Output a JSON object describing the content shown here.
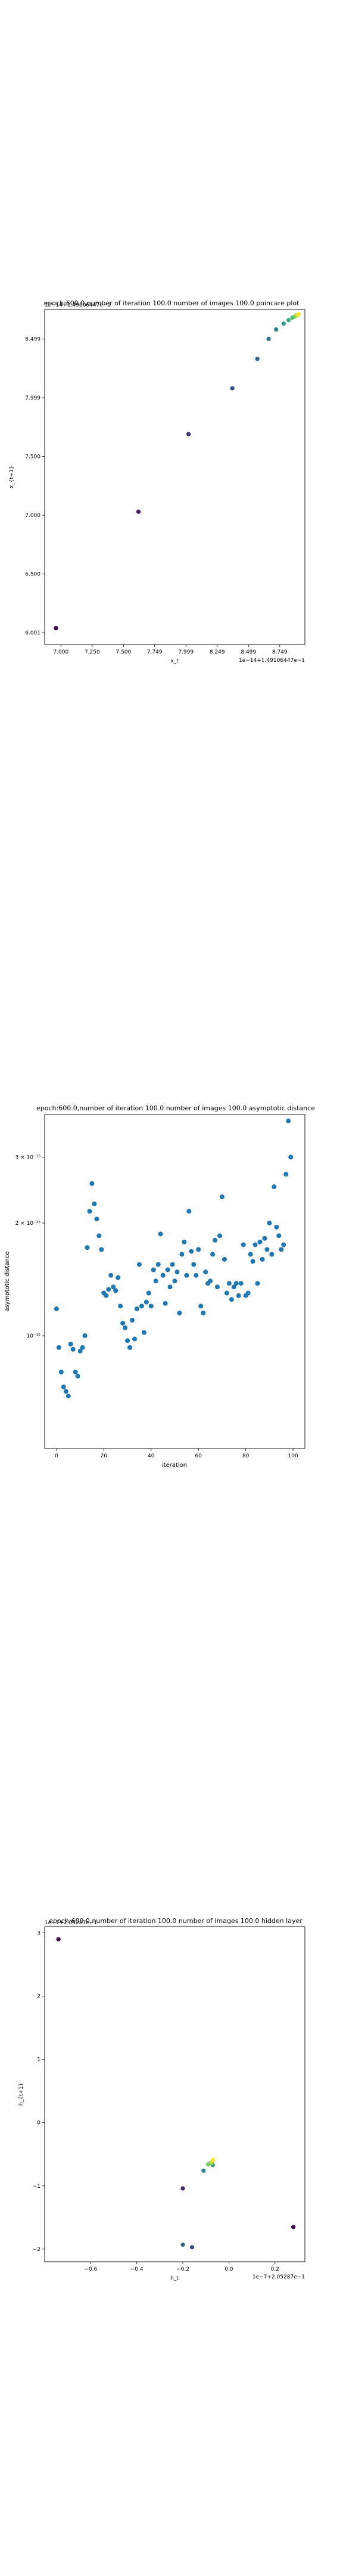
{
  "chart_data": [
    {
      "type": "scatter",
      "title": "epoch:600.0,number of iteration 100.0 number of images 100.0 poincare plot",
      "xlabel": "x_t",
      "ylabel": "x_{t+1}",
      "x_offset_text": "1e−14+1.49106447e−1",
      "y_offset_text": "1e−14+1.49106447e−1",
      "xlim": [
        6.87,
        8.95
      ],
      "ylim": [
        5.9,
        8.75
      ],
      "x_ticks": [
        7.0,
        7.25,
        7.5,
        7.749,
        7.999,
        8.249,
        8.499,
        8.749
      ],
      "x_tick_labels": [
        "7.000",
        "7.250",
        "7.500",
        "7.749",
        "7.999",
        "8.249",
        "8.499",
        "8.749"
      ],
      "y_ticks": [
        6.001,
        6.5,
        7.0,
        7.5,
        7.999,
        8.499
      ],
      "y_tick_labels": [
        "6.001",
        "6.500",
        "7.000",
        "7.500",
        "7.999",
        "8.499"
      ],
      "color_scale": [
        "#440154",
        "#3b528b",
        "#21918c",
        "#5ec962",
        "#fde725"
      ],
      "x": [
        6.96,
        7.62,
        8.02,
        8.37,
        8.57,
        8.66,
        8.72,
        8.78,
        8.82,
        8.85,
        8.87,
        8.88,
        8.89,
        8.9
      ],
      "y": [
        6.04,
        7.03,
        7.69,
        8.08,
        8.33,
        8.5,
        8.58,
        8.63,
        8.66,
        8.68,
        8.69,
        8.7,
        8.7,
        8.71
      ]
    },
    {
      "type": "scatter",
      "title": "epoch:600.0,number of iteration 100.0  number of images 100.0 asymptotic distance",
      "xlabel": "iteration",
      "ylabel": "asymptotic distance",
      "xlim": [
        -5,
        105
      ],
      "ylim": [
        5e-16,
        3.9e-15
      ],
      "y_scale": "log",
      "x_ticks": [
        0,
        20,
        40,
        60,
        80,
        100
      ],
      "x_tick_labels": [
        "0",
        "20",
        "40",
        "60",
        "80",
        "100"
      ],
      "y_ticks": [
        1e-15,
        2e-15,
        3e-15
      ],
      "y_tick_labels": [
        "10⁻¹⁵",
        "2 × 10⁻¹⁵",
        "3 × 10⁻¹⁵"
      ],
      "series_color": "#1f77b4",
      "x": [
        0,
        1,
        2,
        3,
        4,
        5,
        6,
        7,
        8,
        9,
        10,
        11,
        12,
        13,
        14,
        15,
        16,
        17,
        18,
        19,
        20,
        21,
        22,
        23,
        24,
        25,
        26,
        27,
        28,
        29,
        30,
        31,
        32,
        33,
        34,
        35,
        36,
        37,
        38,
        39,
        40,
        41,
        42,
        43,
        44,
        45,
        46,
        47,
        48,
        49,
        50,
        51,
        52,
        53,
        54,
        55,
        56,
        57,
        58,
        59,
        60,
        61,
        62,
        63,
        64,
        65,
        66,
        67,
        68,
        69,
        70,
        71,
        72,
        73,
        74,
        75,
        76,
        77,
        78,
        79,
        80,
        81,
        82,
        83,
        84,
        85,
        86,
        87,
        88,
        89,
        90,
        91,
        92,
        93,
        94,
        95,
        96,
        97,
        98,
        99
      ],
      "y": [
        1.18e-15,
        9.3e-16,
        8e-16,
        7.3e-16,
        7.1e-16,
        6.9e-16,
        9.5e-16,
        9.2e-16,
        8e-16,
        7.8e-16,
        9.1e-16,
        9.3e-16,
        1e-15,
        1.72e-15,
        2.15e-15,
        2.55e-15,
        2.25e-15,
        2.05e-15,
        1.85e-15,
        1.7e-15,
        1.3e-15,
        1.28e-15,
        1.33e-15,
        1.45e-15,
        1.35e-15,
        1.32e-15,
        1.43e-15,
        1.2e-15,
        1.08e-15,
        1.05e-15,
        9.7e-16,
        9.3e-16,
        1.1e-15,
        9.8e-16,
        1.18e-15,
        1.55e-15,
        1.2e-15,
        1.02e-15,
        1.23e-15,
        1.3e-15,
        1.2e-15,
        1.5e-15,
        1.4e-15,
        1.55e-15,
        1.87e-15,
        1.45e-15,
        1.22e-15,
        1.5e-15,
        1.35e-15,
        1.55e-15,
        1.4e-15,
        1.48e-15,
        1.15e-15,
        1.65e-15,
        1.78e-15,
        1.45e-15,
        2.15e-15,
        1.68e-15,
        1.55e-15,
        1.45e-15,
        1.7e-15,
        1.2e-15,
        1.15e-15,
        1.48e-15,
        1.38e-15,
        1.4e-15,
        1.65e-15,
        1.8e-15,
        1.35e-15,
        1.85e-15,
        2.35e-15,
        1.6e-15,
        1.3e-15,
        1.38e-15,
        1.25e-15,
        1.35e-15,
        1.38e-15,
        1.28e-15,
        1.38e-15,
        1.75e-15,
        1.28e-15,
        1.3e-15,
        1.65e-15,
        1.58e-15,
        1.75e-15,
        1.38e-15,
        1.78e-15,
        1.6e-15,
        1.82e-15,
        1.7e-15,
        2e-15,
        1.65e-15,
        2.5e-15,
        1.95e-15,
        1.85e-15,
        1.7e-15,
        1.75e-15,
        2.7e-15,
        3.75e-15,
        3e-15
      ]
    },
    {
      "type": "scatter",
      "title": "epoch:600.0,number of iteration 100.0  number of images 100.0 hidden layer",
      "xlabel": "h_t",
      "ylabel": "h_{t+1}",
      "x_offset_text": "1e−7+2.05287e−1",
      "y_offset_text": "1e−7+2.05287e−1",
      "xlim": [
        -0.8,
        0.33
      ],
      "ylim": [
        -2.2,
        3.1
      ],
      "x_ticks": [
        -0.6,
        -0.4,
        -0.2,
        0.0,
        0.2
      ],
      "x_tick_labels": [
        "−0.6",
        "−0.4",
        "−0.2",
        "0.0",
        "0.2"
      ],
      "y_ticks": [
        -2,
        -1,
        0,
        1,
        2,
        3
      ],
      "y_tick_labels": [
        "−2",
        "−1",
        "0",
        "1",
        "2",
        "3"
      ],
      "color_scale": [
        "#440154",
        "#3b528b",
        "#21918c",
        "#5ec962",
        "#fde725"
      ],
      "x": [
        -0.74,
        -0.2,
        -0.16,
        -0.2,
        -0.11,
        -0.07,
        -0.08,
        -0.09,
        -0.075,
        -0.07
      ],
      "y": [
        2.9,
        -1.04,
        -1.97,
        -1.93,
        -0.76,
        -0.67,
        -0.64,
        -0.66,
        -0.63,
        -0.59
      ],
      "outlier": {
        "x": [
          0.28
        ],
        "y": [
          -1.65
        ]
      }
    }
  ]
}
